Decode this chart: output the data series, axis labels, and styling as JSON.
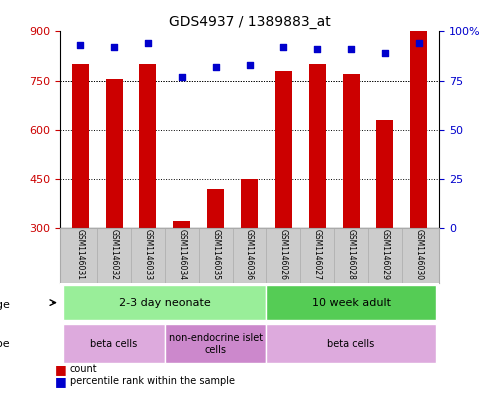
{
  "title": "GDS4937 / 1389883_at",
  "samples": [
    "GSM1146031",
    "GSM1146032",
    "GSM1146033",
    "GSM1146034",
    "GSM1146035",
    "GSM1146036",
    "GSM1146026",
    "GSM1146027",
    "GSM1146028",
    "GSM1146029",
    "GSM1146030"
  ],
  "counts": [
    800,
    755,
    800,
    322,
    420,
    448,
    780,
    800,
    770,
    630,
    900
  ],
  "percentiles": [
    93,
    92,
    94,
    77,
    82,
    83,
    92,
    91,
    91,
    89,
    94
  ],
  "ylim_left": [
    300,
    900
  ],
  "ylim_right": [
    0,
    100
  ],
  "yticks_left": [
    300,
    450,
    600,
    750,
    900
  ],
  "yticks_right": [
    0,
    25,
    50,
    75,
    100
  ],
  "bar_color": "#cc0000",
  "dot_color": "#0000cc",
  "grid_color": "#000000",
  "bg_color": "#ffffff",
  "plot_bg": "#ffffff",
  "age_groups": [
    {
      "label": "2-3 day neonate",
      "start": 0,
      "end": 6,
      "color": "#99ee99"
    },
    {
      "label": "10 week adult",
      "start": 6,
      "end": 11,
      "color": "#55cc55"
    }
  ],
  "cell_type_groups": [
    {
      "label": "beta cells",
      "start": 0,
      "end": 3,
      "color": "#ddaadd"
    },
    {
      "label": "non-endocrine islet\ncells",
      "start": 3,
      "end": 6,
      "color": "#cc88cc"
    },
    {
      "label": "beta cells",
      "start": 6,
      "end": 11,
      "color": "#ddaadd"
    }
  ],
  "xlabel_area_color": "#cccccc",
  "legend_items": [
    {
      "color": "#cc0000",
      "label": "count"
    },
    {
      "color": "#0000cc",
      "label": "percentile rank within the sample"
    }
  ]
}
